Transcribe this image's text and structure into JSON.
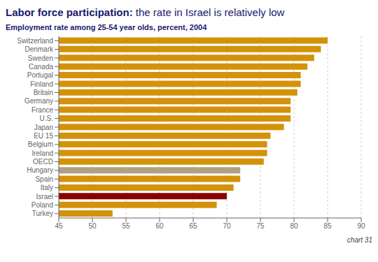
{
  "chart_data": {
    "type": "bar",
    "orientation": "horizontal",
    "title": "Labor force participation: the rate in Israel is relatively low",
    "subtitle": "Employment rate among 25-54 year olds, percent, 2004",
    "annotations": [
      "chart 31"
    ],
    "categories": [
      "Switzerland",
      "Denmark",
      "Sweden",
      "Canada",
      "Portugal",
      "Finland",
      "Britain",
      "Germany",
      "France",
      "U.S.",
      "Japan",
      "EU 15",
      "Belgium",
      "Ireland",
      "OECD",
      "Hungary",
      "Spain",
      "Italy",
      "Israel",
      "Poland",
      "Turkey"
    ],
    "values": [
      85,
      84,
      83,
      82,
      81,
      81,
      80.5,
      79.5,
      79.5,
      79.5,
      78.5,
      76.5,
      76,
      76,
      75.5,
      72,
      72,
      71,
      70,
      68.5,
      53
    ],
    "colors": [
      "#D4920A",
      "#D4920A",
      "#D4920A",
      "#D4920A",
      "#D4920A",
      "#D4920A",
      "#D4920A",
      "#D4920A",
      "#D4920A",
      "#D4920A",
      "#D4920A",
      "#D4920A",
      "#D4920A",
      "#D4920A",
      "#D4920A",
      "#B0A080",
      "#D4920A",
      "#D4920A",
      "#8B0000",
      "#D4920A",
      "#D4920A"
    ],
    "xlim": [
      45,
      90
    ],
    "xticks": [
      45,
      50,
      55,
      60,
      65,
      70,
      75,
      80,
      85,
      90
    ],
    "grid": true
  }
}
